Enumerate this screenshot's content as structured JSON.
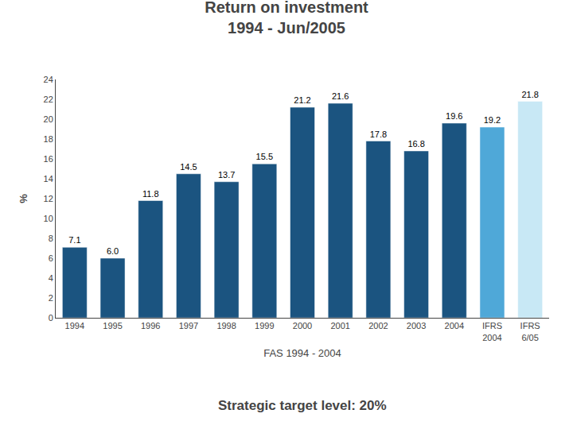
{
  "chart_data": {
    "type": "bar",
    "title": "Return on investment\n1994 - Jun/2005",
    "subtitle": "Strategic target level: 20%",
    "xlabel": "FAS 1994 - 2004",
    "ylabel": "%",
    "categories": [
      "1994",
      "1995",
      "1996",
      "1997",
      "1998",
      "1999",
      "2000",
      "2001",
      "2002",
      "2003",
      "2004",
      "IFRS\n2004",
      "IFRS\n6/05"
    ],
    "values": [
      7.1,
      6.0,
      11.8,
      14.5,
      13.7,
      15.5,
      21.2,
      21.6,
      17.8,
      16.8,
      19.6,
      19.2,
      21.8
    ],
    "value_labels": [
      "7.1",
      "6.0",
      "11.8",
      "14.5",
      "13.7",
      "15.5",
      "21.2",
      "21.6",
      "17.8",
      "16.8",
      "19.6",
      "19.2",
      "21.8"
    ],
    "colors": [
      "#1b5480",
      "#1b5480",
      "#1b5480",
      "#1b5480",
      "#1b5480",
      "#1b5480",
      "#1b5480",
      "#1b5480",
      "#1b5480",
      "#1b5480",
      "#1b5480",
      "#4fa8d8",
      "#c8e8f5"
    ],
    "ylim": [
      0,
      24
    ],
    "yticks": [
      0,
      2,
      4,
      6,
      8,
      10,
      12,
      14,
      16,
      18,
      20,
      22,
      24
    ],
    "data_labels": true,
    "grid": false
  }
}
